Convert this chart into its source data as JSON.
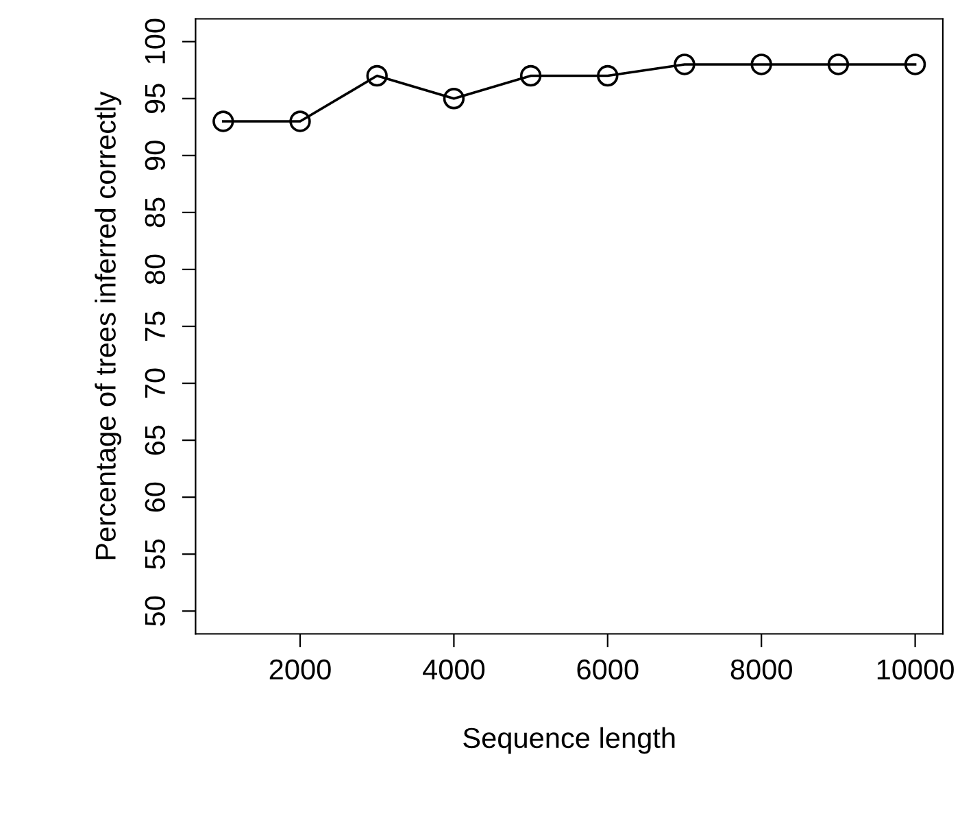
{
  "chart_data": {
    "type": "line",
    "xlabel": "Sequence length",
    "ylabel": "Percentage of trees inferred correctly",
    "x": [
      1000,
      2000,
      3000,
      4000,
      5000,
      6000,
      7000,
      8000,
      9000,
      10000
    ],
    "series": [
      {
        "color": "#000000",
        "values": [
          93,
          93,
          97,
          95,
          97,
          97,
          98,
          98,
          98,
          98
        ]
      }
    ],
    "xlim": [
      640,
      10360
    ],
    "xticks": [
      2000,
      4000,
      6000,
      8000,
      10000
    ],
    "ylim": [
      48,
      102
    ],
    "yticks": [
      50,
      55,
      60,
      65,
      70,
      75,
      80,
      85,
      90,
      95,
      100
    ],
    "marker": "circle",
    "line_style": "solid",
    "grid": false,
    "legend": false
  }
}
